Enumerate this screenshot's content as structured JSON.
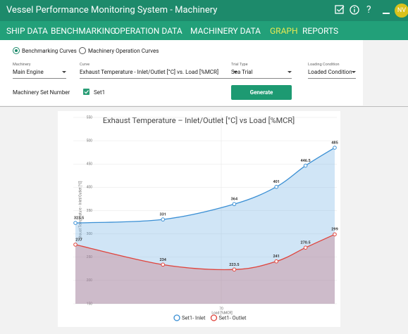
{
  "header": {
    "title": "Vessel Performance Monitoring System - Machinery",
    "help": "?",
    "user": "NV"
  },
  "nav": [
    {
      "label": "SHIP DATA",
      "active": false
    },
    {
      "label": "BENCHMARKING",
      "active": false
    },
    {
      "label": "OPERATION DATA",
      "active": false
    },
    {
      "label": "MACHINERY DATA",
      "active": false
    },
    {
      "label": "GRAPH",
      "active": true
    },
    {
      "label": "REPORTS",
      "active": false
    }
  ],
  "form": {
    "radios": [
      {
        "label": "Benchmarking Curves",
        "checked": true
      },
      {
        "label": "Machinery Operation Curves",
        "checked": false
      }
    ],
    "fields": [
      {
        "label": "Machinery",
        "value": "Main Engine"
      },
      {
        "label": "Curve",
        "value": "Exhaust Temperature - Inlet/Outlet [°C] vs. Load [%MCR]"
      },
      {
        "label": "Trial Type",
        "value": "Sea Trial"
      },
      {
        "label": "Loading Condition",
        "value": "Loaded Condition"
      }
    ],
    "set_label": "Machinery Set Number",
    "set_option": "Set1",
    "button": "Generate"
  },
  "chart_data": {
    "type": "area",
    "title": "Exhaust Temperature – Inlet/Outlet [°C] vs Load [%MCR]",
    "x_label": "Load [%MCR]",
    "y_label": "Exhaust Temperature - Inlet/Outlet [°C]",
    "x": [
      25,
      52,
      74,
      87,
      96,
      105
    ],
    "series": [
      {
        "name": "Set1- Inlet",
        "color": "#3a8fd4",
        "values": [
          323.5,
          331,
          364,
          401,
          446.5,
          485
        ]
      },
      {
        "name": "Set1- Outlet",
        "color": "#e0443c",
        "values": [
          277,
          234,
          223.5,
          241,
          270.5,
          299
        ]
      }
    ],
    "xlim": [
      25,
      105
    ],
    "xticks": [
      70
    ],
    "ylim": [
      150,
      550
    ],
    "yticks": [
      150,
      200,
      250,
      300,
      350,
      400,
      450,
      500,
      550
    ],
    "grid": true
  }
}
